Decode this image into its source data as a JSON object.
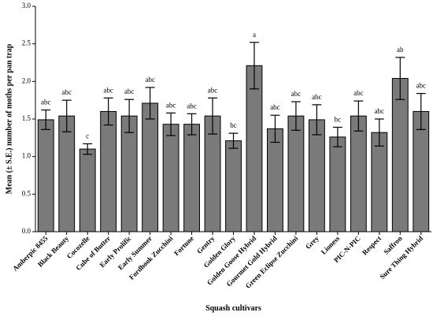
{
  "chart_data": {
    "type": "bar",
    "xlabel": "Squash cultivars",
    "ylabel": "Mean (± S.E.) number of moths per pan trap",
    "ylim": [
      0,
      3.0
    ],
    "yticks": [
      "0.0",
      "0.5",
      "1.0",
      "1.5",
      "2.0",
      "2.5",
      "3.0"
    ],
    "categories": [
      "Amberpic 8455",
      "Black Beauty",
      "Cocozelle",
      "Cube of Butter",
      "Early Prolific",
      "Early Summer",
      "Fordhook Zucchini",
      "Fortune",
      "Gentry",
      "Golden Glory",
      "Golden Goose Hybrid",
      "Gourmet Gold Hybrid",
      "Green Eclipse Zucchini",
      "Grey",
      "Lioness",
      "PIC-N-PIC",
      "Respect",
      "Saffron",
      "Sure Thing Hybrid"
    ],
    "values": [
      1.49,
      1.54,
      1.1,
      1.6,
      1.54,
      1.71,
      1.43,
      1.43,
      1.54,
      1.21,
      2.21,
      1.37,
      1.54,
      1.49,
      1.26,
      1.54,
      1.32,
      2.04,
      1.6
    ],
    "errors": [
      0.13,
      0.21,
      0.07,
      0.18,
      0.22,
      0.21,
      0.15,
      0.14,
      0.24,
      0.1,
      0.31,
      0.18,
      0.19,
      0.2,
      0.13,
      0.2,
      0.18,
      0.28,
      0.24
    ],
    "letters": [
      "abc",
      "abc",
      "c",
      "abc",
      "abc",
      "abc",
      "abc",
      "abc",
      "abc",
      "bc",
      "a",
      "abc",
      "abc",
      "abc",
      "bc",
      "abc",
      "abc",
      "ab",
      "abc"
    ],
    "grid": false,
    "bar_color": "#7a7a7a"
  }
}
